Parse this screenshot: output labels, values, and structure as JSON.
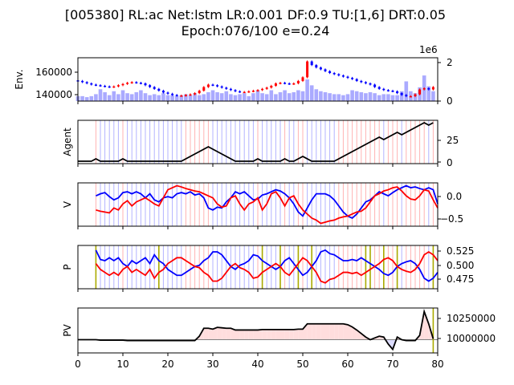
{
  "title_line1": "[005380] RL:ac Net:lstm LR:0.001 DF:0.9 TU:[1,6] DRT:0.05",
  "title_line2": "Epoch:076/100 e=0.24",
  "colors": {
    "up": "#ff0000",
    "down": "#0000ff",
    "volume": "#aaaaff",
    "agent": "#000000",
    "v_buy": "#ff0000",
    "v_sell": "#0000ff",
    "exploration": "#aaaa00",
    "pv_gain": "#ffdddd",
    "pv_loss": "#ddddff",
    "pv_line": "#000000"
  },
  "chart_data": [
    {
      "panel": "env",
      "type": "candlestick",
      "ylabel": "Env.",
      "yticks": [
        "140000",
        "160000"
      ],
      "right_yticks": [
        "0",
        "2"
      ],
      "right_offset_label": "1e6",
      "x": [
        0,
        1,
        2,
        3,
        4,
        5,
        6,
        7,
        8,
        9,
        10,
        11,
        12,
        13,
        14,
        15,
        16,
        17,
        18,
        19,
        20,
        21,
        22,
        23,
        24,
        25,
        26,
        27,
        28,
        29,
        30,
        31,
        32,
        33,
        34,
        35,
        36,
        37,
        38,
        39,
        40,
        41,
        42,
        43,
        44,
        45,
        46,
        47,
        48,
        49,
        50,
        51,
        52,
        53,
        54,
        55,
        56,
        57,
        58,
        59,
        60,
        61,
        62,
        63,
        64,
        65,
        66,
        67,
        68,
        69,
        70,
        71,
        72,
        73,
        74,
        75,
        76,
        77,
        78,
        79
      ],
      "close": [
        153000,
        152000,
        151000,
        150000,
        149500,
        149000,
        148500,
        148000,
        148500,
        149500,
        150500,
        151500,
        152000,
        151500,
        151000,
        149500,
        148000,
        146500,
        145000,
        143500,
        142500,
        141500,
        141000,
        141000,
        141500,
        142000,
        143000,
        145000,
        148000,
        150000,
        149500,
        148500,
        147500,
        146500,
        145500,
        144500,
        144000,
        144000,
        144500,
        145000,
        145500,
        146500,
        147500,
        149000,
        151000,
        151500,
        151000,
        150500,
        151000,
        153000,
        156000,
        169000,
        166000,
        164000,
        162500,
        161000,
        159500,
        158500,
        157500,
        156500,
        155500,
        154500,
        153000,
        152000,
        151000,
        150000,
        148000,
        146500,
        145500,
        145000,
        144500,
        143000,
        141500,
        140500,
        140500,
        142000,
        146000,
        147000,
        146000,
        148000
      ],
      "volume": [
        0.25,
        0.25,
        0.2,
        0.25,
        0.35,
        0.6,
        0.45,
        0.3,
        0.5,
        0.35,
        0.55,
        0.4,
        0.35,
        0.45,
        0.55,
        0.4,
        0.3,
        0.35,
        0.3,
        0.4,
        0.3,
        0.3,
        0.25,
        0.3,
        0.35,
        0.3,
        0.4,
        0.3,
        0.35,
        0.45,
        0.55,
        0.45,
        0.4,
        0.5,
        0.35,
        0.3,
        0.35,
        0.4,
        0.25,
        0.4,
        0.55,
        0.4,
        0.35,
        0.55,
        0.35,
        0.45,
        0.55,
        0.4,
        0.45,
        0.55,
        0.5,
        1.1,
        0.8,
        0.6,
        0.5,
        0.45,
        0.4,
        0.35,
        0.35,
        0.3,
        0.35,
        0.55,
        0.5,
        0.45,
        0.4,
        0.45,
        0.4,
        0.3,
        0.35,
        0.35,
        0.3,
        0.3,
        0.5,
        1.0,
        0.5,
        0.4,
        0.7,
        1.3,
        0.75,
        0.5
      ]
    },
    {
      "panel": "agent",
      "type": "line",
      "ylabel": "Agent",
      "right_yticks": [
        "0",
        "25"
      ],
      "x": [
        0,
        1,
        2,
        3,
        4,
        5,
        6,
        7,
        8,
        9,
        10,
        11,
        12,
        13,
        14,
        15,
        16,
        17,
        18,
        19,
        20,
        21,
        22,
        23,
        24,
        25,
        26,
        27,
        28,
        29,
        30,
        31,
        32,
        33,
        34,
        35,
        36,
        37,
        38,
        39,
        40,
        41,
        42,
        43,
        44,
        45,
        46,
        47,
        48,
        49,
        50,
        51,
        52,
        53,
        54,
        55,
        56,
        57,
        58,
        59,
        60,
        61,
        62,
        63,
        64,
        65,
        66,
        67,
        68,
        69,
        70,
        71,
        72,
        73,
        74,
        75,
        76,
        77,
        78,
        79
      ],
      "values": [
        0,
        0,
        0,
        0,
        3,
        0,
        0,
        0,
        0,
        0,
        3,
        0,
        0,
        0,
        0,
        0,
        0,
        0,
        0,
        0,
        0,
        0,
        0,
        0,
        3,
        6,
        9,
        12,
        15,
        18,
        15,
        12,
        9,
        6,
        3,
        0,
        0,
        0,
        0,
        0,
        3,
        0,
        0,
        0,
        0,
        0,
        3,
        0,
        0,
        3,
        6,
        3,
        0,
        0,
        0,
        0,
        0,
        0,
        3,
        6,
        9,
        12,
        15,
        18,
        21,
        24,
        27,
        30,
        27,
        30,
        33,
        36,
        33,
        36,
        39,
        42,
        45,
        48,
        45,
        48
      ],
      "markers": [
        "",
        "",
        "",
        "",
        "buy",
        "sell",
        "sell",
        "sell",
        "sell",
        "sell",
        "buy",
        "sell",
        "sell",
        "sell",
        "sell",
        "sell",
        "sell",
        "sell",
        "sell",
        "sell",
        "sell",
        "sell",
        "sell",
        "sell",
        "buy",
        "buy",
        "buy",
        "buy",
        "buy",
        "buy",
        "sell",
        "sell",
        "sell",
        "sell",
        "sell",
        "sell",
        "sell",
        "sell",
        "sell",
        "sell",
        "buy",
        "sell",
        "sell",
        "sell",
        "sell",
        "sell",
        "buy",
        "sell",
        "sell",
        "buy",
        "buy",
        "sell",
        "sell",
        "sell",
        "sell",
        "sell",
        "sell",
        "sell",
        "buy",
        "buy",
        "buy",
        "buy",
        "buy",
        "buy",
        "buy",
        "buy",
        "buy",
        "buy",
        "sell",
        "buy",
        "buy",
        "buy",
        "sell",
        "buy",
        "buy",
        "buy",
        "buy",
        "buy",
        "sell",
        "buy"
      ]
    },
    {
      "panel": "value",
      "type": "line",
      "ylabel": "V",
      "right_yticks": [
        "0.0",
        "−0.5"
      ],
      "x_start": 4,
      "buy": [
        -0.35,
        -0.38,
        -0.4,
        -0.42,
        -0.3,
        -0.35,
        -0.2,
        -0.12,
        -0.25,
        -0.15,
        -0.1,
        -0.05,
        -0.12,
        -0.2,
        -0.25,
        -0.05,
        0.15,
        0.2,
        0.25,
        0.22,
        0.18,
        0.15,
        0.12,
        0.1,
        0.05,
        0.0,
        -0.05,
        -0.2,
        -0.28,
        -0.25,
        -0.05,
        0.0,
        -0.2,
        -0.35,
        -0.2,
        -0.15,
        -0.05,
        -0.35,
        -0.2,
        0.05,
        0.1,
        -0.05,
        -0.25,
        -0.05,
        0.0,
        -0.2,
        -0.35,
        -0.45,
        -0.55,
        -0.6,
        -0.68,
        -0.65,
        -0.62,
        -0.6,
        -0.55,
        -0.52,
        -0.5,
        -0.45,
        -0.4,
        -0.38,
        -0.3,
        -0.15,
        0.0,
        0.05,
        0.12,
        0.15,
        0.2,
        0.22,
        0.12,
        0.0,
        -0.08,
        -0.1,
        0.0,
        0.15,
        0.12,
        -0.1,
        -0.3
      ],
      "sell": [
        0.0,
        0.05,
        0.08,
        -0.02,
        -0.1,
        -0.05,
        0.08,
        0.1,
        0.05,
        0.1,
        0.05,
        -0.05,
        0.05,
        -0.1,
        -0.15,
        -0.05,
        -0.02,
        -0.05,
        0.05,
        0.08,
        0.05,
        0.1,
        0.02,
        0.05,
        -0.05,
        -0.3,
        -0.35,
        -0.28,
        -0.3,
        -0.15,
        -0.05,
        0.1,
        0.05,
        0.1,
        0.0,
        -0.1,
        -0.08,
        0.02,
        0.05,
        0.1,
        0.15,
        0.12,
        0.05,
        -0.05,
        -0.2,
        -0.4,
        -0.5,
        -0.3,
        -0.1,
        0.05,
        0.05,
        0.05,
        0.0,
        -0.1,
        -0.25,
        -0.4,
        -0.5,
        -0.55,
        -0.45,
        -0.3,
        -0.15,
        -0.1,
        0.0,
        0.1,
        0.05,
        0.0,
        0.08,
        0.15,
        0.2,
        0.25,
        0.2,
        0.22,
        0.18,
        0.15,
        0.2,
        0.15,
        -0.2
      ]
    },
    {
      "panel": "policy",
      "type": "line",
      "ylabel": "P",
      "right_yticks": [
        "0.525",
        "0.500",
        "0.475"
      ],
      "x_start": 4,
      "buy": [
        0.505,
        0.495,
        0.49,
        0.485,
        0.49,
        0.485,
        0.495,
        0.5,
        0.49,
        0.495,
        0.49,
        0.485,
        0.495,
        0.48,
        0.49,
        0.495,
        0.505,
        0.51,
        0.515,
        0.515,
        0.51,
        0.505,
        0.5,
        0.498,
        0.49,
        0.485,
        0.475,
        0.475,
        0.48,
        0.49,
        0.5,
        0.505,
        0.498,
        0.495,
        0.49,
        0.48,
        0.482,
        0.49,
        0.495,
        0.5,
        0.505,
        0.5,
        0.49,
        0.485,
        0.495,
        0.505,
        0.515,
        0.51,
        0.5,
        0.49,
        0.475,
        0.472,
        0.478,
        0.48,
        0.485,
        0.49,
        0.49,
        0.488,
        0.49,
        0.485,
        0.49,
        0.495,
        0.5,
        0.505,
        0.512,
        0.515,
        0.51,
        0.5,
        0.495,
        0.492,
        0.49,
        0.495,
        0.505,
        0.52,
        0.525,
        0.52,
        0.51
      ],
      "sell": [
        0.528,
        0.512,
        0.51,
        0.515,
        0.51,
        0.515,
        0.505,
        0.5,
        0.51,
        0.505,
        0.51,
        0.515,
        0.505,
        0.52,
        0.51,
        0.505,
        0.495,
        0.49,
        0.485,
        0.485,
        0.49,
        0.495,
        0.5,
        0.502,
        0.51,
        0.515,
        0.525,
        0.525,
        0.52,
        0.51,
        0.5,
        0.495,
        0.502,
        0.505,
        0.51,
        0.52,
        0.518,
        0.51,
        0.505,
        0.5,
        0.495,
        0.5,
        0.51,
        0.515,
        0.505,
        0.495,
        0.485,
        0.49,
        0.5,
        0.51,
        0.525,
        0.528,
        0.522,
        0.52,
        0.515,
        0.51,
        0.51,
        0.512,
        0.51,
        0.515,
        0.51,
        0.505,
        0.5,
        0.495,
        0.488,
        0.485,
        0.49,
        0.5,
        0.505,
        0.508,
        0.51,
        0.505,
        0.495,
        0.48,
        0.475,
        0.48,
        0.49
      ],
      "exploration_x": [
        4,
        18,
        41,
        45,
        49,
        52,
        64,
        65,
        68,
        71,
        79
      ]
    },
    {
      "panel": "pv",
      "type": "area",
      "ylabel": "PV",
      "right_yticks": [
        "10250000",
        "10000000"
      ],
      "xticks": [
        "0",
        "10",
        "20",
        "30",
        "40",
        "50",
        "60",
        "70",
        "80"
      ],
      "xlim": [
        0,
        80
      ],
      "baseline": 10000000,
      "x": [
        0,
        1,
        2,
        3,
        4,
        5,
        6,
        7,
        8,
        9,
        10,
        11,
        12,
        13,
        14,
        15,
        16,
        17,
        18,
        19,
        20,
        21,
        22,
        23,
        24,
        25,
        26,
        27,
        28,
        29,
        30,
        31,
        32,
        33,
        34,
        35,
        36,
        37,
        38,
        39,
        40,
        41,
        42,
        43,
        44,
        45,
        46,
        47,
        48,
        49,
        50,
        51,
        52,
        53,
        54,
        55,
        56,
        57,
        58,
        59,
        60,
        61,
        62,
        63,
        64,
        65,
        66,
        67,
        68,
        69,
        70,
        71,
        72,
        73,
        74,
        75,
        76,
        77,
        78,
        79
      ],
      "values": [
        10000000,
        10000000,
        10000000,
        10000000,
        10000000,
        9995000,
        9995000,
        9995000,
        9995000,
        9995000,
        9995000,
        9990000,
        9990000,
        9990000,
        9990000,
        9990000,
        9990000,
        9990000,
        9990000,
        9990000,
        9990000,
        9990000,
        9990000,
        9990000,
        9990000,
        9990000,
        9990000,
        10040000,
        10130000,
        10130000,
        10120000,
        10140000,
        10135000,
        10130000,
        10130000,
        10110000,
        10110000,
        10110000,
        10110000,
        10110000,
        10110000,
        10115000,
        10115000,
        10115000,
        10115000,
        10115000,
        10115000,
        10115000,
        10115000,
        10120000,
        10120000,
        10180000,
        10180000,
        10180000,
        10180000,
        10180000,
        10180000,
        10180000,
        10180000,
        10180000,
        10170000,
        10145000,
        10110000,
        10070000,
        10030000,
        10000000,
        10020000,
        10040000,
        10030000,
        9950000,
        9890000,
        10030000,
        10000000,
        9990000,
        9990000,
        9990000,
        10050000,
        10320000,
        10180000,
        10010000
      ]
    }
  ]
}
